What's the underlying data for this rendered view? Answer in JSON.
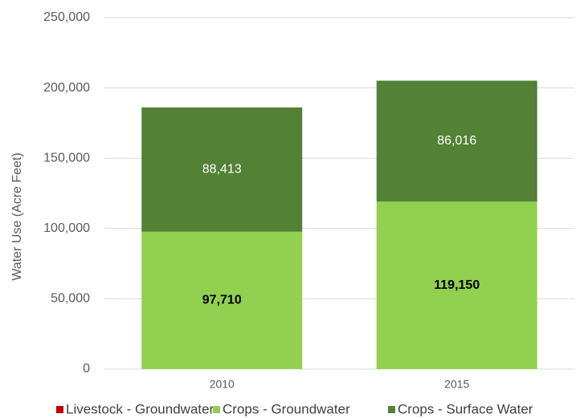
{
  "chart_data": {
    "type": "stacked_bar",
    "ylabel": "Water Use (Acre Feet)",
    "categories": [
      "2010",
      "2015"
    ],
    "series": [
      {
        "name": "Livestock - Groundwater",
        "color": "#c00000",
        "values": [
          0,
          0
        ]
      },
      {
        "name": "Crops - Groundwater",
        "color": "#92d050",
        "values": [
          97710,
          119150
        ],
        "value_labels": [
          "97,710",
          "119,150"
        ]
      },
      {
        "name": "Crops - Surface Water",
        "color": "#538135",
        "values": [
          88413,
          86016
        ],
        "value_labels": [
          "88,413",
          "86,016"
        ]
      }
    ],
    "ylim": [
      0,
      250000
    ],
    "yticks": [
      0,
      {
        "value": 50000,
        "label": "50,000"
      },
      {
        "value": 100000,
        "label": "100,000"
      },
      {
        "value": 150000,
        "label": "150,000"
      },
      {
        "value": 200000,
        "label": "200,000"
      },
      {
        "value": 250000,
        "label": "250,000"
      }
    ],
    "grid": true,
    "legend": "bottom"
  }
}
